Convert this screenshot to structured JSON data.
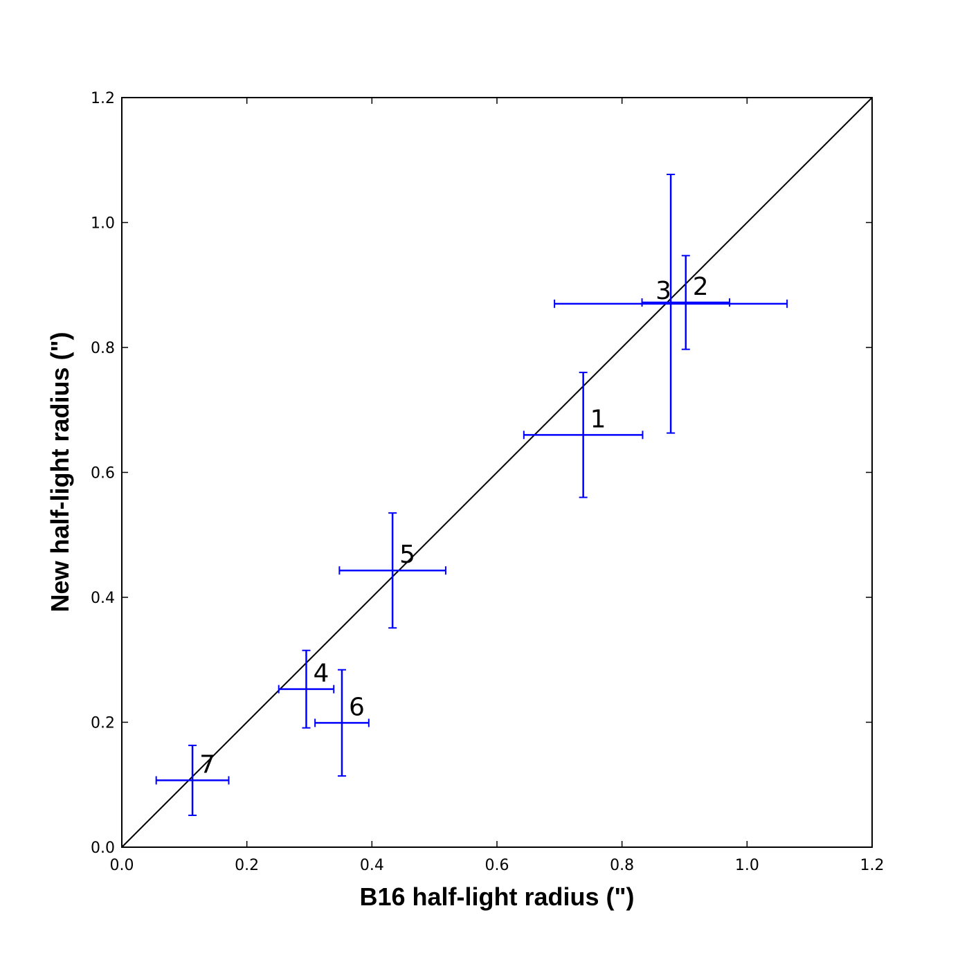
{
  "chart_data": {
    "type": "scatter",
    "xlabel": "B16 half-light radius (\")",
    "ylabel": "New half-light radius (\")",
    "xlim": [
      0.0,
      1.2
    ],
    "ylim": [
      0.0,
      1.2
    ],
    "xticks": [
      "0.0",
      "0.2",
      "0.4",
      "0.6",
      "0.8",
      "1.0",
      "1.2"
    ],
    "yticks": [
      "0.0",
      "0.2",
      "0.4",
      "0.6",
      "0.8",
      "1.0",
      "1.2"
    ],
    "grid": false,
    "reference_line": {
      "from": [
        0.0,
        0.0
      ],
      "to": [
        1.2,
        1.2
      ],
      "color": "#000000"
    },
    "series_color": "#0000ff",
    "points": [
      {
        "label": "1",
        "x": 0.738,
        "y": 0.66,
        "xerr": 0.095,
        "yerr": 0.1
      },
      {
        "label": "2",
        "x": 0.902,
        "y": 0.872,
        "xerr": 0.07,
        "yerr": 0.075
      },
      {
        "label": "3",
        "x": 0.878,
        "y": 0.87,
        "xerr": 0.186,
        "yerr": 0.207
      },
      {
        "label": "4",
        "x": 0.295,
        "y": 0.253,
        "xerr": 0.044,
        "yerr": 0.062
      },
      {
        "label": "5",
        "x": 0.433,
        "y": 0.443,
        "xerr": 0.085,
        "yerr": 0.092
      },
      {
        "label": "6",
        "x": 0.352,
        "y": 0.199,
        "xerr": 0.043,
        "yerr": 0.085
      },
      {
        "label": "7",
        "x": 0.113,
        "y": 0.107,
        "xerr": 0.058,
        "yerr": 0.056
      }
    ]
  }
}
